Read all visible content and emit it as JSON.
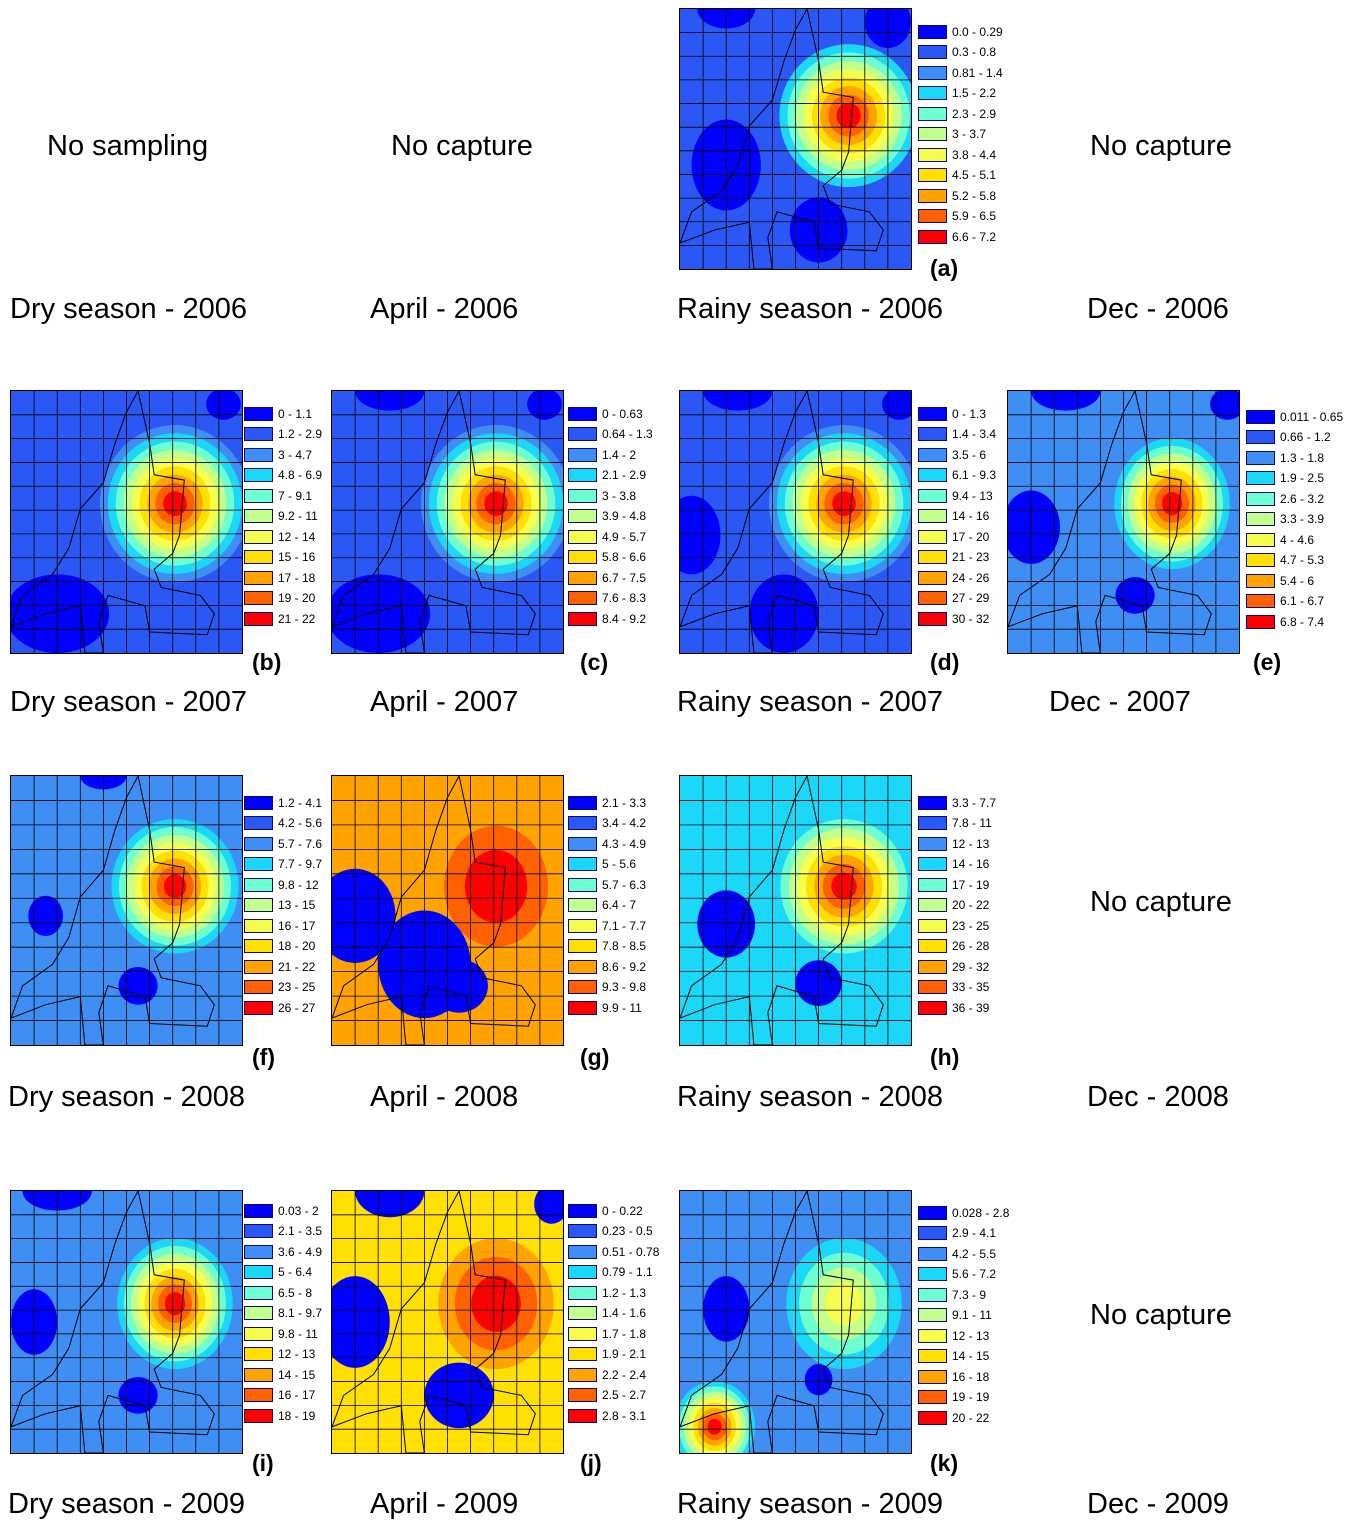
{
  "colors": [
    "#0000ff",
    "#2b57f5",
    "#3f8ef3",
    "#1cd8f8",
    "#6effd0",
    "#c2ff8d",
    "#f7ff4e",
    "#ffe000",
    "#ffa300",
    "#ff6000",
    "#ff0000"
  ],
  "notes": {
    "dry_2006": "No sampling",
    "april_2006": "No capture",
    "dec_2006": "No capture",
    "dec_2008": "No capture",
    "dec_2009": "No capture"
  },
  "periods": {
    "r2006": [
      "Dry season - 2006",
      "April - 2006",
      "Rainy season - 2006",
      "Dec - 2006"
    ],
    "r2007": [
      "Dry season - 2007",
      "April - 2007",
      "Rainy season - 2007",
      "Dec - 2007"
    ],
    "r2008": [
      "Dry season - 2008",
      "April - 2008",
      "Rainy season - 2008",
      "Dec - 2008"
    ],
    "r2009": [
      "Dry season - 2009",
      "April - 2009",
      "Rainy season - 2009",
      "Dec - 2009"
    ]
  },
  "panels": {
    "a": {
      "letter": "(a)",
      "legend": [
        "0.0 - 0.29",
        "0.3 - 0.8",
        "0.81 - 1.4",
        "1.5 - 2.2",
        "2.3 - 2.9",
        "3 - 3.7",
        "3.8 - 4.4",
        "4.5 - 5.1",
        "5.2 - 5.8",
        "5.9 - 6.5",
        "6.6 - 7.2"
      ]
    },
    "b": {
      "letter": "(b)",
      "legend": [
        "0 - 1.1",
        "1.2 - 2.9",
        "3 - 4.7",
        "4.8 - 6.9",
        "7 - 9.1",
        "9.2 - 11",
        "12 - 14",
        "15 - 16",
        "17 - 18",
        "19 - 20",
        "21 - 22"
      ]
    },
    "c": {
      "letter": "(c)",
      "legend": [
        "0 - 0.63",
        "0.64 - 1.3",
        "1.4 - 2",
        "2.1 - 2.9",
        "3 - 3.8",
        "3.9 - 4.8",
        "4.9 - 5.7",
        "5.8 - 6.6",
        "6.7 - 7.5",
        "7.6 - 8.3",
        "8.4 - 9.2"
      ]
    },
    "d": {
      "letter": "(d)",
      "legend": [
        "0 - 1.3",
        "1.4 - 3.4",
        "3.5 - 6",
        "6.1 - 9.3",
        "9.4 - 13",
        "14 - 16",
        "17 - 20",
        "21 - 23",
        "24 - 26",
        "27 - 29",
        "30 - 32"
      ]
    },
    "e": {
      "letter": "(e)",
      "legend": [
        "0.011 - 0.65",
        "0.66 - 1.2",
        "1.3 - 1.8",
        "1.9 - 2.5",
        "2.6 - 3.2",
        "3.3 - 3.9",
        "4 - 4.6",
        "4.7 - 5.3",
        "5.4 - 6",
        "6.1 - 6.7",
        "6.8 - 7.4"
      ]
    },
    "f": {
      "letter": "(f)",
      "legend": [
        "1.2 - 4.1",
        "4.2 - 5.6",
        "5.7 - 7.6",
        "7.7 - 9.7",
        "9.8 - 12",
        "13 - 15",
        "16 - 17",
        "18 - 20",
        "21 - 22",
        "23 - 25",
        "26 - 27"
      ]
    },
    "g": {
      "letter": "(g)",
      "legend": [
        "2.1 - 3.3",
        "3.4 - 4.2",
        "4.3 - 4.9",
        "5 - 5.6",
        "5.7 - 6.3",
        "6.4 - 7",
        "7.1 - 7.7",
        "7.8 - 8.5",
        "8.6 - 9.2",
        "9.3 - 9.8",
        "9.9 - 11"
      ]
    },
    "h": {
      "letter": "(h)",
      "legend": [
        "3.3 - 7.7",
        "7.8 - 11",
        "12 - 13",
        "14 - 16",
        "17 - 19",
        "20 - 22",
        "23 - 25",
        "26 - 28",
        "29 - 32",
        "33 - 35",
        "36 - 39"
      ]
    },
    "i": {
      "letter": "(i)",
      "legend": [
        "0.03 - 2",
        "2.1 - 3.5",
        "3.6 - 4.9",
        "5 - 6.4",
        "6.5 - 8",
        "8.1 - 9.7",
        "9.8 - 11",
        "12 - 13",
        "14 - 15",
        "16 - 17",
        "18 - 19"
      ]
    },
    "j": {
      "letter": "(j)",
      "legend": [
        "0 - 0.22",
        "0.23 - 0.5",
        "0.51 - 0.78",
        "0.79 - 1.1",
        "1.2 - 1.3",
        "1.4 - 1.6",
        "1.7 - 1.8",
        "1.9 - 2.1",
        "2.2 - 2.4",
        "2.5 - 2.7",
        "2.8 - 3.1"
      ]
    },
    "k": {
      "letter": "(k)",
      "legend": [
        "0.028 - 2.8",
        "2.9 - 4.1",
        "4.2 - 5.5",
        "5.6 - 7.2",
        "7.3 - 9",
        "9.1 - 11",
        "12 - 13",
        "14 - 15",
        "16 - 18",
        "19 - 19",
        "20 - 22"
      ]
    }
  }
}
